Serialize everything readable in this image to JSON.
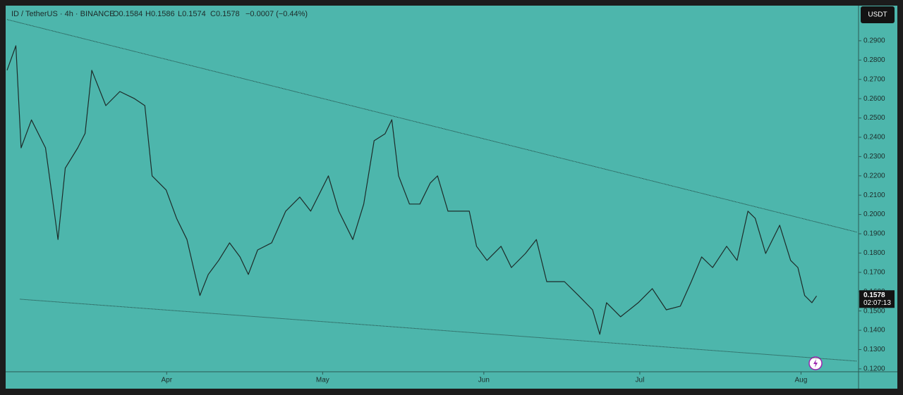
{
  "chart_data": {
    "type": "line",
    "header": "ID / TetherUS · 4h · BINANCE",
    "ohlc_labels": [
      "O0.1584",
      "H0.1586",
      "L0.1574",
      "C0.1578"
    ],
    "change": "−0.0007 (−0.44%)",
    "currency": "USDT",
    "last_price": 0.1578,
    "countdown": "02:07:13",
    "color": "#1d2b29",
    "background": "#4db6ac",
    "x": [
      -30.7,
      -29,
      -28,
      -26,
      -23.3,
      -21.8,
      -20.9,
      -19.5,
      -17.1,
      -15.7,
      -14.4,
      -11.7,
      -9,
      -6.2,
      -4.2,
      -2.8,
      -0.1,
      1.9,
      3.9,
      6.4,
      8,
      10,
      12.1,
      14.1,
      15.7,
      17.5,
      20.2,
      22.9,
      25.6,
      27.7,
      31.1,
      33.1,
      35.8,
      37.9,
      39.9,
      42,
      43.3,
      44.6,
      46.7,
      48.7,
      50.7,
      52.1,
      54.1,
      56.2,
      58.2,
      59.6,
      61.6,
      64.3,
      66.3,
      69,
      71.1,
      73.1,
      76.5,
      79.2,
      81.9,
      83.3,
      84.6,
      87.3,
      90.7,
      93.4,
      96.1,
      98.8,
      100.9,
      102.9,
      105,
      107.7,
      109.7,
      111.8,
      113.2,
      115.2,
      117.9,
      120,
      121.4,
      122.7,
      124.1,
      125
    ],
    "values": [
      0.2747,
      0.2874,
      0.2345,
      0.249,
      0.2345,
      0.205,
      0.187,
      0.224,
      0.2345,
      0.242,
      0.2747,
      0.2564,
      0.2637,
      0.26,
      0.2564,
      0.22,
      0.2127,
      0.198,
      0.187,
      0.158,
      0.1689,
      0.1762,
      0.1853,
      0.178,
      0.1689,
      0.1816,
      0.1853,
      0.2017,
      0.209,
      0.2017,
      0.22,
      0.2017,
      0.187,
      0.2054,
      0.2382,
      0.2418,
      0.2491,
      0.22,
      0.2054,
      0.2054,
      0.2163,
      0.22,
      0.2017,
      0.2017,
      0.2017,
      0.1835,
      0.1762,
      0.1835,
      0.1725,
      0.1798,
      0.187,
      0.1652,
      0.1652,
      0.158,
      0.1506,
      0.1379,
      0.1543,
      0.147,
      0.1543,
      0.1616,
      0.1506,
      0.1525,
      0.1652,
      0.178,
      0.1725,
      0.1835,
      0.1762,
      0.2017,
      0.198,
      0.1798,
      0.1944,
      0.1762,
      0.1725,
      0.158,
      0.1543,
      0.1578
    ],
    "trendlines": [
      {
        "x": [
          -30.7,
          132.8
        ],
        "values": [
          0.301,
          0.1908
        ]
      },
      {
        "x": [
          -28.2,
          132.8
        ],
        "values": [
          0.1561,
          0.124
        ]
      }
    ],
    "xlim": [
      -30.7,
      132.8
    ],
    "ylim": [
      0.1185,
      0.3082
    ],
    "xticks": [
      {
        "value": 0,
        "label": "Apr"
      },
      {
        "value": 30,
        "label": "May"
      },
      {
        "value": 61,
        "label": "Jun"
      },
      {
        "value": 91,
        "label": "Jul"
      },
      {
        "value": 122,
        "label": "Aug"
      }
    ],
    "yticks": [
      {
        "value": 0.12,
        "label": "0.1200"
      },
      {
        "value": 0.13,
        "label": "0.1300"
      },
      {
        "value": 0.14,
        "label": "0.1400"
      },
      {
        "value": 0.15,
        "label": "0.1500"
      },
      {
        "value": 0.16,
        "label": "0.1600"
      },
      {
        "value": 0.17,
        "label": "0.1700"
      },
      {
        "value": 0.18,
        "label": "0.1800"
      },
      {
        "value": 0.19,
        "label": "0.1900"
      },
      {
        "value": 0.2,
        "label": "0.2000"
      },
      {
        "value": 0.21,
        "label": "0.2100"
      },
      {
        "value": 0.22,
        "label": "0.2200"
      },
      {
        "value": 0.23,
        "label": "0.2300"
      },
      {
        "value": 0.24,
        "label": "0.2400"
      },
      {
        "value": 0.25,
        "label": "0.2500"
      },
      {
        "value": 0.26,
        "label": "0.2600"
      },
      {
        "value": 0.27,
        "label": "0.2700"
      },
      {
        "value": 0.28,
        "label": "0.2800"
      },
      {
        "value": 0.29,
        "label": "0.2900"
      }
    ]
  }
}
